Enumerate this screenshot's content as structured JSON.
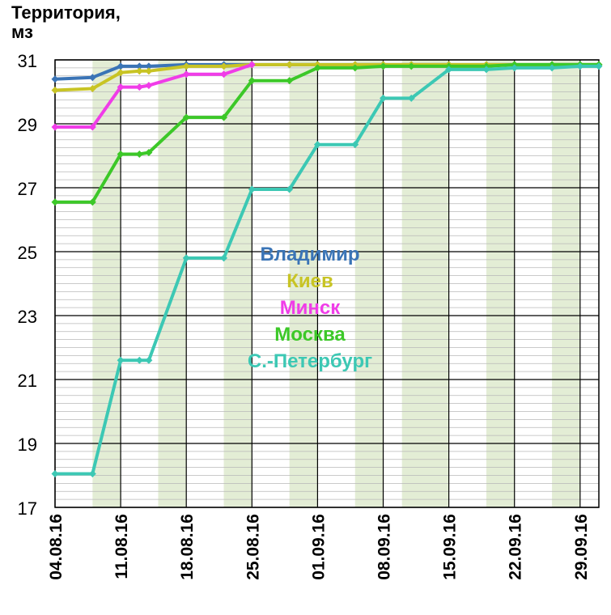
{
  "chart_data": {
    "type": "line",
    "ylabel": "Территория,\nмз",
    "ylim": [
      17,
      31
    ],
    "y_ticks": [
      17,
      19,
      21,
      23,
      25,
      27,
      29,
      31
    ],
    "y_minor_step": 0.25,
    "grid": true,
    "x_start": "04.08.16",
    "x_end": "01.10.16",
    "x_tick_labels": [
      "04.08.16",
      "11.08.16",
      "18.08.16",
      "25.08.16",
      "01.09.16",
      "08.09.16",
      "15.09.16",
      "22.09.16",
      "29.09.16"
    ],
    "shaded_bands": [
      [
        "08.08.16",
        "11.08.16"
      ],
      [
        "15.08.16",
        "18.08.16"
      ],
      [
        "22.08.16",
        "25.08.16"
      ],
      [
        "29.08.16",
        "01.09.16"
      ],
      [
        "05.09.16",
        "08.09.16"
      ],
      [
        "10.09.16",
        "15.09.16"
      ],
      [
        "19.09.16",
        "22.09.16"
      ],
      [
        "26.09.16",
        "29.09.16"
      ]
    ],
    "legend_position": "center",
    "series": [
      {
        "name": "Владимир",
        "color": "#3a74b6",
        "x": [
          "04.08.16",
          "08.08.16",
          "11.08.16",
          "13.08.16",
          "14.08.16",
          "18.08.16",
          "22.08.16",
          "25.08.16",
          "29.08.16",
          "01.09.16",
          "05.09.16",
          "08.09.16",
          "11.09.16",
          "15.09.16",
          "19.09.16",
          "22.09.16",
          "26.09.16",
          "29.09.16",
          "01.10.16"
        ],
        "values": [
          30.4,
          30.45,
          30.8,
          30.8,
          30.8,
          30.85,
          30.85,
          30.85,
          30.85,
          30.85,
          30.85,
          30.85,
          30.85,
          30.85,
          30.85,
          30.85,
          30.85,
          30.85,
          30.85
        ]
      },
      {
        "name": "Киев",
        "color": "#c8c424",
        "x": [
          "04.08.16",
          "08.08.16",
          "11.08.16",
          "13.08.16",
          "14.08.16",
          "18.08.16",
          "22.08.16",
          "25.08.16",
          "29.08.16",
          "01.09.16",
          "05.09.16",
          "08.09.16",
          "11.09.16",
          "15.09.16",
          "19.09.16",
          "22.09.16",
          "26.09.16",
          "29.09.16",
          "01.10.16"
        ],
        "values": [
          30.05,
          30.1,
          30.6,
          30.65,
          30.65,
          30.8,
          30.8,
          30.85,
          30.85,
          30.85,
          30.85,
          30.85,
          30.85,
          30.85,
          30.85,
          30.85,
          30.85,
          30.85,
          30.85
        ]
      },
      {
        "name": "Минск",
        "color": "#f03ce8",
        "x": [
          "04.08.16",
          "08.08.16",
          "11.08.16",
          "13.08.16",
          "14.08.16",
          "18.08.16",
          "22.08.16",
          "25.08.16"
        ],
        "values": [
          28.9,
          28.9,
          30.15,
          30.15,
          30.2,
          30.55,
          30.55,
          30.85
        ]
      },
      {
        "name": "Москва",
        "color": "#3cc828",
        "x": [
          "04.08.16",
          "08.08.16",
          "11.08.16",
          "13.08.16",
          "14.08.16",
          "18.08.16",
          "22.08.16",
          "25.08.16",
          "29.08.16",
          "01.09.16",
          "05.09.16",
          "08.09.16",
          "11.09.16",
          "15.09.16",
          "19.09.16",
          "22.09.16",
          "26.09.16",
          "29.09.16",
          "01.10.16"
        ],
        "values": [
          26.55,
          26.55,
          28.05,
          28.05,
          28.1,
          29.2,
          29.2,
          30.35,
          30.35,
          30.75,
          30.75,
          30.8,
          30.8,
          30.8,
          30.8,
          30.85,
          30.85,
          30.85,
          30.85
        ]
      },
      {
        "name": "С.-Петербург",
        "color": "#3cc8b4",
        "x": [
          "04.08.16",
          "08.08.16",
          "11.08.16",
          "13.08.16",
          "14.08.16",
          "18.08.16",
          "22.08.16",
          "25.08.16",
          "29.08.16",
          "01.09.16",
          "05.09.16",
          "08.09.16",
          "11.09.16",
          "15.09.16",
          "19.09.16",
          "22.09.16",
          "26.09.16",
          "29.09.16",
          "01.10.16"
        ],
        "values": [
          18.05,
          18.05,
          21.6,
          21.6,
          21.6,
          24.8,
          24.8,
          26.95,
          26.95,
          28.35,
          28.35,
          29.8,
          29.8,
          30.7,
          30.7,
          30.75,
          30.75,
          30.8,
          30.8
        ]
      }
    ]
  }
}
